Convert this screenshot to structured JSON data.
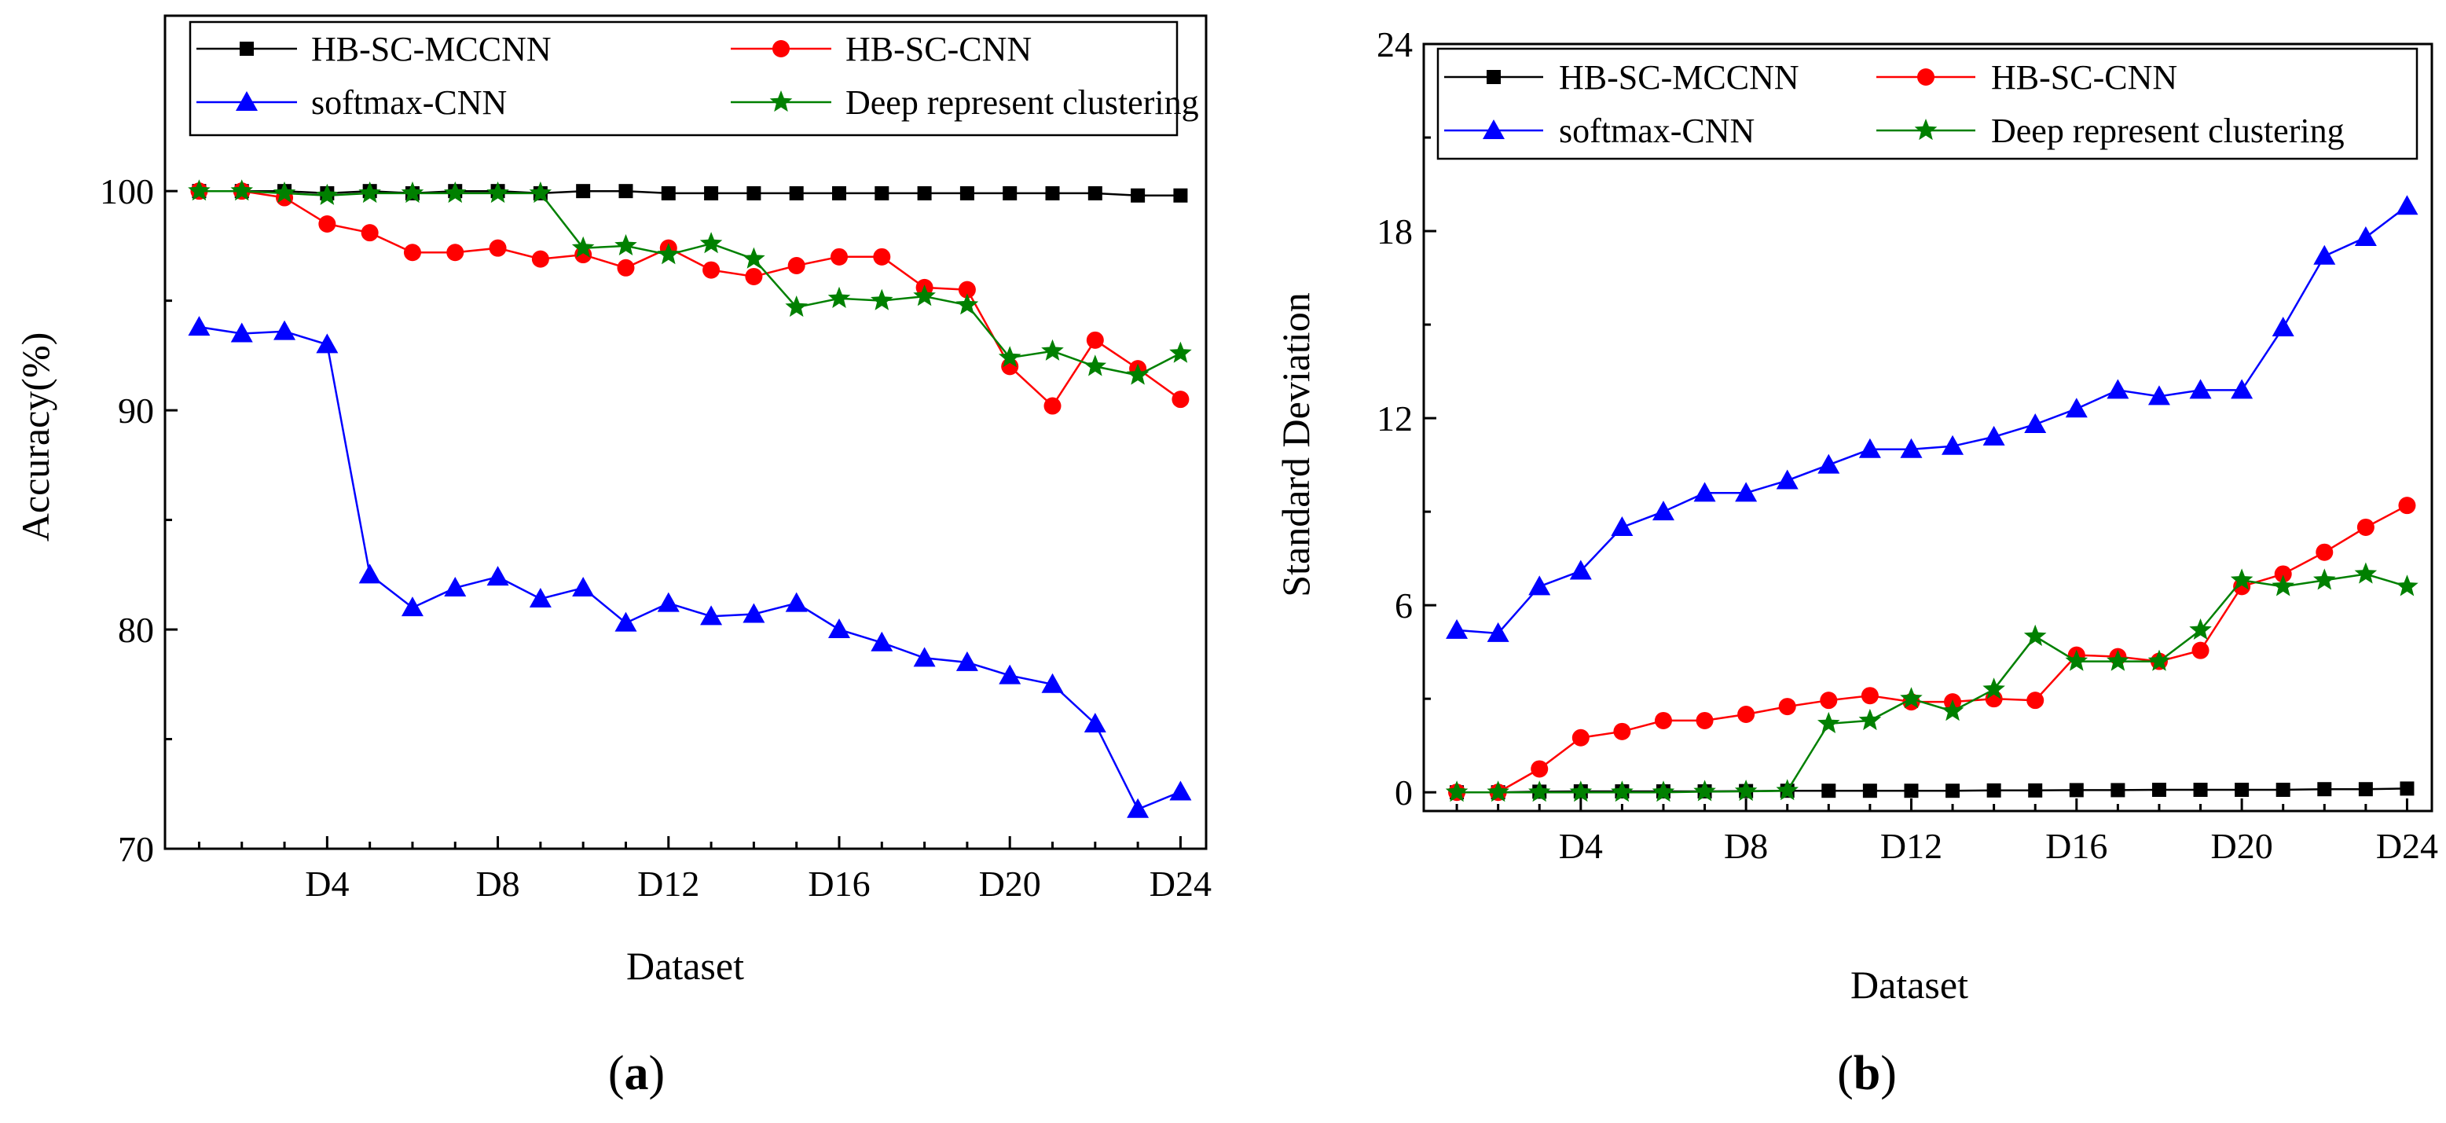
{
  "chart_data": [
    {
      "type": "line",
      "panel_label": "a",
      "title": "",
      "xlabel": "Dataset",
      "ylabel": "Accuracy(%)",
      "ylim": [
        70,
        108
      ],
      "xlim": [
        0.2,
        24.6
      ],
      "yticks": [
        70,
        80,
        90,
        100
      ],
      "xticks": [
        4,
        8,
        12,
        16,
        20,
        24
      ],
      "xtick_labels": [
        "D4",
        "D8",
        "D12",
        "D16",
        "D20",
        "D24"
      ],
      "legend_position": "top",
      "x": [
        1,
        2,
        3,
        4,
        5,
        6,
        7,
        8,
        9,
        10,
        11,
        12,
        13,
        14,
        15,
        16,
        17,
        18,
        19,
        20,
        21,
        22,
        23,
        24
      ],
      "series": [
        {
          "name": "HB-SC-MCCNN",
          "color": "#000000",
          "marker": "square",
          "values": [
            100,
            100,
            100,
            99.9,
            100,
            99.9,
            100,
            100,
            99.9,
            100,
            100,
            99.9,
            99.9,
            99.9,
            99.9,
            99.9,
            99.9,
            99.9,
            99.9,
            99.9,
            99.9,
            99.9,
            99.8,
            99.8
          ]
        },
        {
          "name": "HB-SC-CNN",
          "color": "#ff0000",
          "marker": "circle",
          "values": [
            100,
            100,
            99.7,
            98.5,
            98.1,
            97.2,
            97.2,
            97.4,
            96.9,
            97.1,
            96.5,
            97.4,
            96.4,
            96.1,
            96.6,
            97.0,
            97.0,
            95.6,
            95.5,
            92.0,
            90.2,
            93.2,
            91.9,
            90.5
          ]
        },
        {
          "name": "softmax-CNN",
          "color": "#0000ff",
          "marker": "triangle",
          "values": [
            93.8,
            93.5,
            93.6,
            93.0,
            82.5,
            81.0,
            81.9,
            82.4,
            81.4,
            81.9,
            80.3,
            81.2,
            80.6,
            80.7,
            81.2,
            80.0,
            79.4,
            78.7,
            78.5,
            77.9,
            77.5,
            75.7,
            71.8,
            72.6
          ]
        },
        {
          "name": "Deep represent clustering",
          "color": "#008000",
          "marker": "star",
          "values": [
            100,
            100,
            99.9,
            99.8,
            99.9,
            99.9,
            99.9,
            99.9,
            99.9,
            97.4,
            97.5,
            97.1,
            97.6,
            96.9,
            94.7,
            95.1,
            95.0,
            95.2,
            94.8,
            92.4,
            92.7,
            92.0,
            91.6,
            92.6
          ]
        }
      ]
    },
    {
      "type": "line",
      "panel_label": "b",
      "title": "",
      "xlabel": "Dataset",
      "ylabel": "Standard Deviation",
      "ylim": [
        -0.6,
        24
      ],
      "xlim": [
        0.2,
        24.6
      ],
      "yticks": [
        0,
        6,
        12,
        18,
        24
      ],
      "xticks": [
        4,
        8,
        12,
        16,
        20,
        24
      ],
      "xtick_labels": [
        "D4",
        "D8",
        "D12",
        "D16",
        "D20",
        "D24"
      ],
      "legend_position": "top",
      "x": [
        1,
        2,
        3,
        4,
        5,
        6,
        7,
        8,
        9,
        10,
        11,
        12,
        13,
        14,
        15,
        16,
        17,
        18,
        19,
        20,
        21,
        22,
        23,
        24
      ],
      "series": [
        {
          "name": "HB-SC-MCCNN",
          "color": "#000000",
          "marker": "square",
          "values": [
            0,
            0,
            0.02,
            0.03,
            0.03,
            0.03,
            0.03,
            0.04,
            0.05,
            0.05,
            0.05,
            0.05,
            0.05,
            0.06,
            0.06,
            0.07,
            0.07,
            0.08,
            0.08,
            0.08,
            0.08,
            0.1,
            0.1,
            0.12
          ]
        },
        {
          "name": "HB-SC-CNN",
          "color": "#ff0000",
          "marker": "circle",
          "values": [
            0,
            0,
            0.75,
            1.75,
            1.95,
            2.3,
            2.3,
            2.5,
            2.75,
            2.95,
            3.1,
            2.9,
            2.9,
            3.0,
            2.95,
            4.4,
            4.35,
            4.2,
            4.55,
            6.6,
            7.0,
            7.7,
            8.5,
            9.2
          ]
        },
        {
          "name": "softmax-CNN",
          "color": "#0000ff",
          "marker": "triangle",
          "values": [
            5.2,
            5.1,
            6.6,
            7.1,
            8.5,
            9.0,
            9.6,
            9.6,
            10.0,
            10.5,
            11.0,
            11.0,
            11.1,
            11.4,
            11.8,
            12.3,
            12.9,
            12.7,
            12.9,
            12.9,
            14.9,
            17.2,
            17.8,
            18.8
          ]
        },
        {
          "name": "Deep represent clustering",
          "color": "#008000",
          "marker": "star",
          "values": [
            0,
            0,
            0,
            0,
            0,
            0,
            0.02,
            0.03,
            0.05,
            2.2,
            2.3,
            3.0,
            2.6,
            3.3,
            5.0,
            4.2,
            4.2,
            4.2,
            5.2,
            6.8,
            6.6,
            6.8,
            7.0,
            6.6
          ]
        }
      ]
    }
  ]
}
